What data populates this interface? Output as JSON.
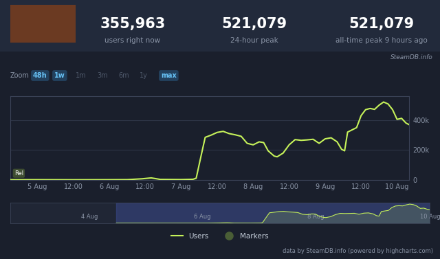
{
  "header": {
    "stats": [
      {
        "value": "355,963",
        "label": "users right now"
      },
      {
        "value": "521,079",
        "label": "24-hour peak"
      },
      {
        "value": "521,079",
        "label": "all-time peak 9 hours ago"
      }
    ],
    "source": "SteamDB.info"
  },
  "zoom": {
    "label": "Zoom",
    "buttons": [
      {
        "label": "48h",
        "active": true
      },
      {
        "label": "1w",
        "active": true
      },
      {
        "label": "1m",
        "active": false
      },
      {
        "label": "3m",
        "active": false
      },
      {
        "label": "6m",
        "active": false
      },
      {
        "label": "1y",
        "active": false
      },
      {
        "label": "max",
        "active": true
      }
    ]
  },
  "chart_data": {
    "type": "line",
    "x": [
      -9,
      0,
      12,
      24,
      30,
      35,
      38,
      41,
      48,
      52,
      53,
      54.5,
      56,
      58,
      60,
      62,
      64,
      66,
      68,
      70,
      72,
      74,
      75.5,
      77,
      79,
      80,
      82,
      84,
      86,
      88,
      90,
      92,
      94,
      96,
      98,
      100,
      101.5,
      102.5,
      103.5,
      105,
      106.5,
      108,
      109.5,
      111,
      112.5,
      114,
      115.5,
      117,
      118.5,
      120,
      121.5,
      123,
      124
    ],
    "series": [
      {
        "name": "Users",
        "color": "#c6f25a",
        "values": [
          2000,
          2000,
          1500,
          2000,
          2500,
          8000,
          14000,
          4000,
          3000,
          5000,
          12000,
          150000,
          285000,
          300000,
          318000,
          325000,
          310000,
          302000,
          292000,
          245000,
          235000,
          255000,
          250000,
          195000,
          160000,
          155000,
          180000,
          235000,
          270000,
          265000,
          268000,
          272000,
          245000,
          275000,
          282000,
          255000,
          205000,
          195000,
          320000,
          335000,
          350000,
          430000,
          470000,
          478000,
          472000,
          500000,
          521079,
          508000,
          470000,
          405000,
          412000,
          380000,
          370000
        ]
      }
    ],
    "xlim": [
      -9,
      124
    ],
    "xticks": [
      {
        "value": 0,
        "label": "5 Aug"
      },
      {
        "value": 12,
        "label": "12:00"
      },
      {
        "value": 24,
        "label": "6 Aug"
      },
      {
        "value": 36,
        "label": "12:00"
      },
      {
        "value": 48,
        "label": "7 Aug"
      },
      {
        "value": 60,
        "label": "12:00"
      },
      {
        "value": 72,
        "label": "8 Aug"
      },
      {
        "value": 84,
        "label": "12:00"
      },
      {
        "value": 96,
        "label": "9 Aug"
      },
      {
        "value": 108,
        "label": "12:00"
      },
      {
        "value": 120,
        "label": "10 Aug"
      }
    ],
    "ylim": [
      0,
      560000
    ],
    "yticks": [
      0,
      {
        "value": 200000,
        "label": "200k"
      },
      {
        "value": 400000,
        "label": "400k"
      }
    ],
    "grid": true,
    "legend": "lower center",
    "annotations": [
      "Rel"
    ]
  },
  "navigator": {
    "xlim": [
      -54,
      124
    ],
    "xticks": [
      {
        "value": -24,
        "label": "4 Aug"
      },
      {
        "value": 24,
        "label": "6 Aug"
      },
      {
        "value": 72,
        "label": "8 Aug"
      },
      {
        "value": 120,
        "label": "10 Aug"
      }
    ]
  },
  "legend_marker": {
    "name": "Markers",
    "color": "#4a5e36"
  },
  "footer": "data by SteamDB.info (powered by highcharts.com)"
}
